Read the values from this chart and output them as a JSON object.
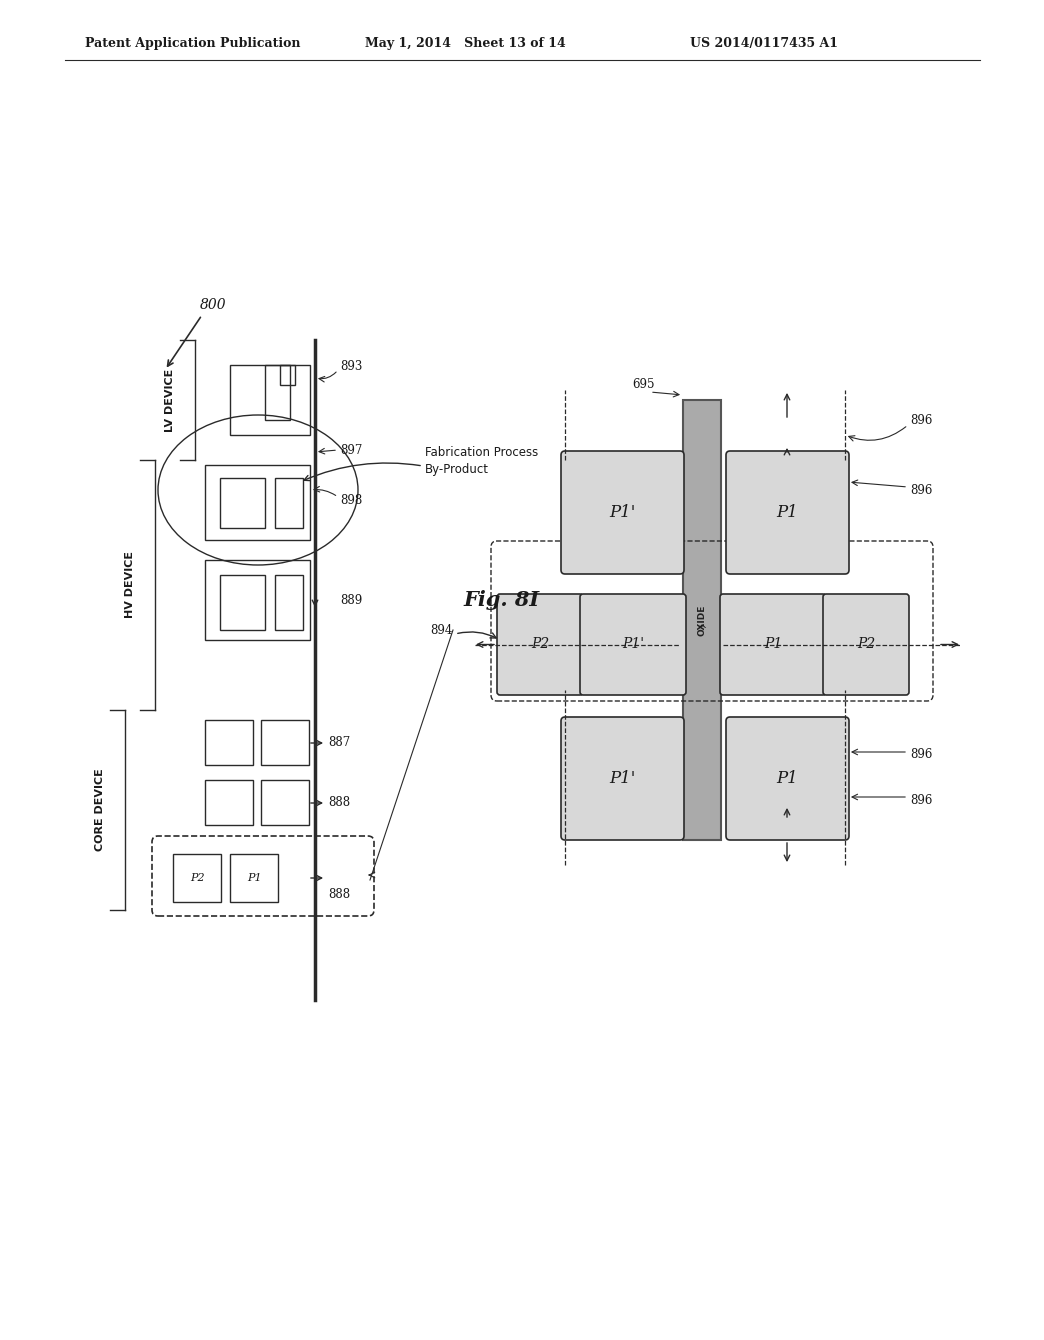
{
  "header_left": "Patent Application Publication",
  "header_mid": "May 1, 2014   Sheet 13 of 14",
  "header_right": "US 2014/0117435 A1",
  "fig_label": "Fig. 8I",
  "background": "#ffffff",
  "text_color": "#1a1a1a",
  "line_color": "#2a2a2a",
  "box_fill": "#d8d8d8",
  "oxide_fill": "#aaaaaa",
  "oxide_edge": "#555555"
}
